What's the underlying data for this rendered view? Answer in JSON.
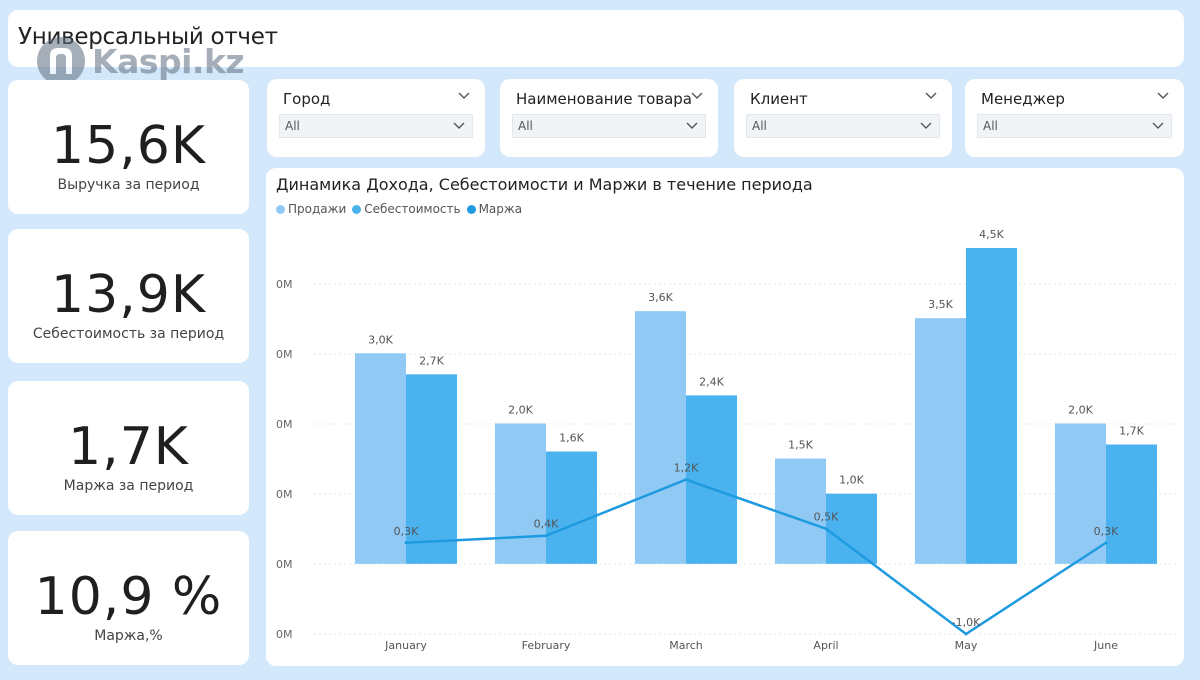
{
  "header": {
    "title": "Универсальный отчет",
    "logo_text": "Kaspi.kz",
    "logo_icon": "kaspi-logo-icon"
  },
  "kpis": [
    {
      "value": "15,6K",
      "label": "Выручка за период"
    },
    {
      "value": "13,9K",
      "label": "Себестоимость за период"
    },
    {
      "value": "1,7K",
      "label": "Маржа за период"
    },
    {
      "value": "10,9 %",
      "label": "Маржа,%"
    }
  ],
  "slicers": [
    {
      "label": "Город",
      "value": "All",
      "icon": "chevron-down-icon"
    },
    {
      "label": "Наименование товара",
      "value": "All",
      "icon": "chevron-down-icon"
    },
    {
      "label": "Клиент",
      "value": "All",
      "icon": "chevron-down-icon"
    },
    {
      "label": "Менеджер",
      "value": "All",
      "icon": "chevron-down-icon"
    }
  ],
  "colors": {
    "background": "#d3e8fb",
    "sales": "#8fc9f4",
    "cost": "#4ab2ef",
    "margin": "#1e9be0",
    "grid": "#e6e6e6"
  },
  "chart_data": {
    "type": "bar",
    "title": "Динамика Дохода, Себестоимости и Маржи в течение периода",
    "categories": [
      "January",
      "February",
      "March",
      "April",
      "May",
      "June"
    ],
    "series": [
      {
        "name": "Продажи",
        "type": "bar",
        "values": [
          3.0,
          2.0,
          3.6,
          1.5,
          3.5,
          2.0
        ],
        "labels": [
          "3,0K",
          "2,0K",
          "3,6K",
          "1,5K",
          "3,5K",
          "2,0K"
        ]
      },
      {
        "name": "Себестоимость",
        "type": "bar",
        "values": [
          2.7,
          1.6,
          2.4,
          1.0,
          4.5,
          1.7
        ],
        "labels": [
          "2,7K",
          "1,6K",
          "2,4K",
          "1,0K",
          "4,5K",
          "1,7K"
        ]
      },
      {
        "name": "Маржа",
        "type": "line",
        "values": [
          0.3,
          0.4,
          1.2,
          0.5,
          -1.0,
          0.3
        ],
        "labels": [
          "0,3K",
          "0,4K",
          "1,2K",
          "0,5K",
          "-1,0K",
          "0,3K"
        ]
      }
    ],
    "y_ticks": [
      "0M",
      "0M",
      "0M",
      "0M",
      "0M",
      "0M"
    ],
    "ylim": [
      -1.0,
      4.5
    ],
    "ylabel": "",
    "xlabel": "",
    "grid": true,
    "legend": "top-left"
  }
}
